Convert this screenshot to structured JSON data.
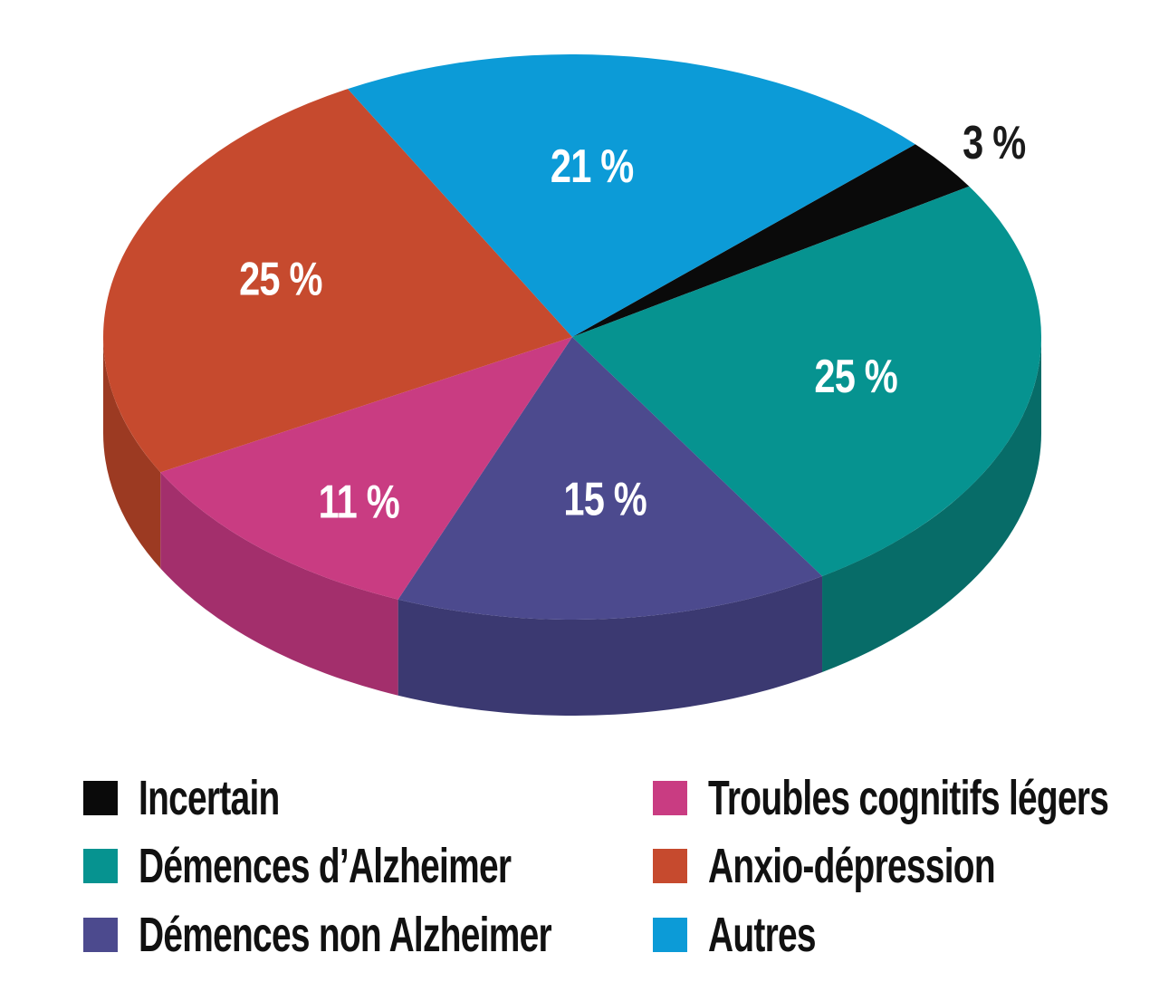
{
  "chart_data": {
    "type": "pie",
    "style": "3d",
    "title": "",
    "unit": "%",
    "background": "#ffffff",
    "direction": "clockwise",
    "start_angle_deg": 43,
    "slices": [
      {
        "label": "Incertain",
        "value": 3,
        "display_label": "3 %",
        "color": "#0a0a0a",
        "side_color": "#000000",
        "label_color": "#1a1a1a",
        "label_inside": false
      },
      {
        "label": "Démences d’Alzheimer",
        "value": 25,
        "display_label": "25 %",
        "color": "#069390",
        "side_color": "#076c68",
        "label_color": "#ffffff",
        "label_inside": true
      },
      {
        "label": "Démences non Alzheimer",
        "value": 15,
        "display_label": "15 %",
        "color": "#4c4a8e",
        "side_color": "#3b3971",
        "label_color": "#ffffff",
        "label_inside": true
      },
      {
        "label": "Troubles cognitifs légers",
        "value": 11,
        "display_label": "11 %",
        "color": "#c93c82",
        "side_color": "#a32f6c",
        "label_color": "#ffffff",
        "label_inside": true
      },
      {
        "label": "Anxio-dépression",
        "value": 25,
        "display_label": "25 %",
        "color": "#c64a2e",
        "side_color": "#9c3a22",
        "label_color": "#ffffff",
        "label_inside": true
      },
      {
        "label": "Autres",
        "value": 21,
        "display_label": "21 %",
        "color": "#0c9bd7",
        "side_color": "#0b76a8",
        "label_color": "#ffffff",
        "label_inside": true
      }
    ],
    "legend": {
      "position": "bottom",
      "columns": [
        [
          0,
          1,
          2
        ],
        [
          3,
          4,
          5
        ]
      ]
    }
  }
}
